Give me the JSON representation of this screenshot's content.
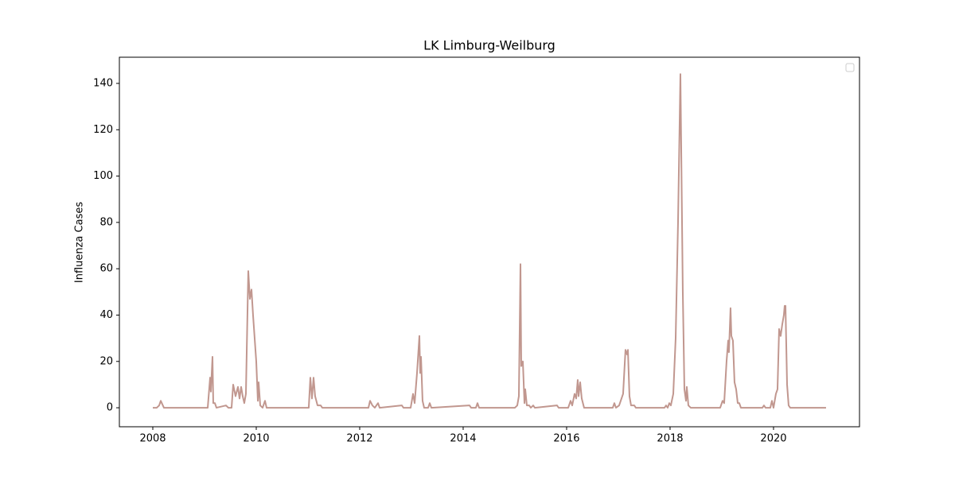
{
  "chart_data": {
    "type": "line",
    "title": "LK Limburg-Weilburg",
    "y_label": "Influenza Cases",
    "x": [
      2008.0,
      2008.077,
      2008.123,
      2008.154,
      2008.215,
      2009.062,
      2009.108,
      2009.123,
      2009.154,
      2009.169,
      2009.2,
      2009.231,
      2009.415,
      2009.462,
      2009.523,
      2009.554,
      2009.6,
      2009.646,
      2009.677,
      2009.708,
      2009.738,
      2009.769,
      2009.8,
      2009.846,
      2009.877,
      2009.908,
      2009.938,
      2010.0,
      2010.031,
      2010.046,
      2010.077,
      2010.123,
      2010.169,
      2010.2,
      2011.015,
      2011.046,
      2011.077,
      2011.108,
      2011.138,
      2011.185,
      2011.246,
      2011.277,
      2012.169,
      2012.2,
      2012.246,
      2012.292,
      2012.354,
      2012.385,
      2012.815,
      2012.846,
      2012.985,
      2013.031,
      2013.062,
      2013.108,
      2013.154,
      2013.169,
      2013.185,
      2013.215,
      2013.246,
      2013.323,
      2013.354,
      2013.385,
      2014.123,
      2014.154,
      2014.246,
      2014.277,
      2014.308,
      2015.0,
      2015.046,
      2015.077,
      2015.108,
      2015.123,
      2015.154,
      2015.185,
      2015.2,
      2015.231,
      2015.277,
      2015.308,
      2015.354,
      2015.385,
      2015.815,
      2015.846,
      2016.031,
      2016.077,
      2016.108,
      2016.154,
      2016.185,
      2016.215,
      2016.231,
      2016.262,
      2016.292,
      2016.338,
      2016.892,
      2016.923,
      2016.954,
      2017.015,
      2017.046,
      2017.092,
      2017.138,
      2017.169,
      2017.185,
      2017.215,
      2017.246,
      2017.308,
      2017.338,
      2017.892,
      2017.923,
      2017.954,
      2017.985,
      2018.015,
      2018.062,
      2018.108,
      2018.154,
      2018.2,
      2018.246,
      2018.277,
      2018.308,
      2018.323,
      2018.354,
      2018.4,
      2018.969,
      2019.015,
      2019.046,
      2019.092,
      2019.123,
      2019.138,
      2019.169,
      2019.185,
      2019.215,
      2019.246,
      2019.277,
      2019.308,
      2019.338,
      2019.369,
      2019.785,
      2019.815,
      2019.846,
      2019.938,
      2019.969,
      2020.0,
      2020.046,
      2020.077,
      2020.108,
      2020.138,
      2020.169,
      2020.2,
      2020.215,
      2020.231,
      2020.262,
      2020.292,
      2020.323,
      2021.015
    ],
    "series": [
      {
        "color": "#c1978f",
        "values": [
          0,
          0,
          1,
          3,
          0,
          0,
          13,
          7,
          22,
          2,
          2,
          0,
          1,
          0,
          0,
          10,
          5,
          9,
          4,
          9,
          5,
          2,
          6,
          59,
          47,
          51,
          40,
          20,
          3,
          11,
          1,
          0,
          3,
          0,
          0,
          13,
          4,
          13,
          5,
          1,
          1,
          0,
          0,
          3,
          1,
          0,
          2,
          0,
          1,
          0,
          0,
          6,
          2,
          15,
          31,
          15,
          22,
          3,
          0,
          0,
          2,
          0,
          1,
          0,
          0,
          2,
          0,
          0,
          1,
          5,
          62,
          18,
          20,
          2,
          8,
          1,
          1,
          0,
          1,
          0,
          1,
          0,
          0,
          3,
          1,
          6,
          4,
          12,
          5,
          11,
          4,
          0,
          0,
          2,
          0,
          1,
          3,
          6,
          25,
          23,
          25,
          5,
          1,
          1,
          0,
          0,
          1,
          0,
          2,
          1,
          6,
          30,
          80,
          144,
          50,
          8,
          3,
          9,
          1,
          0,
          0,
          3,
          2,
          20,
          29,
          24,
          43,
          31,
          29,
          11,
          8,
          2,
          2,
          0,
          0,
          1,
          0,
          0,
          3,
          0,
          6,
          8,
          34,
          31,
          36,
          40,
          44,
          44,
          10,
          1,
          0,
          0
        ]
      }
    ],
    "xlim": [
      2007.354,
      2021.662
    ],
    "xticks": [
      2008,
      2010,
      2012,
      2014,
      2016,
      2018,
      2020
    ],
    "ylim": [
      -8.2,
      151.3
    ],
    "yticks": [
      0,
      20,
      40,
      60,
      80,
      100,
      120,
      140
    ]
  }
}
